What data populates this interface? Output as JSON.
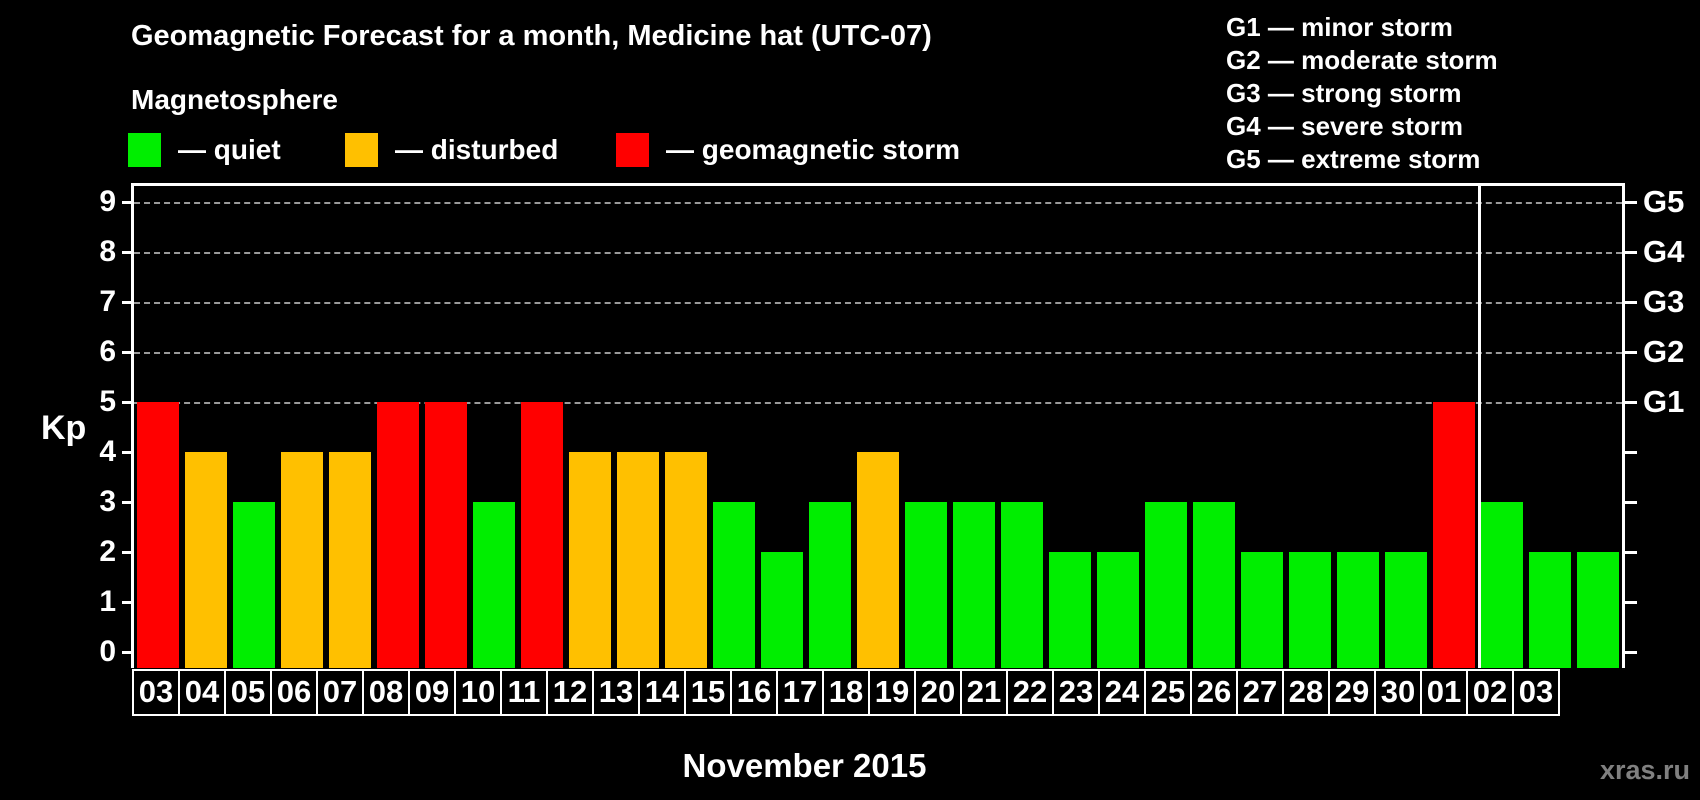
{
  "title": "Geomagnetic Forecast for a month, Medicine hat (UTC-07)",
  "subtitle": "Magnetosphere",
  "legend": {
    "items": [
      {
        "label": "— quiet",
        "status": "quiet",
        "color": "#00ee00"
      },
      {
        "label": "— disturbed",
        "status": "disturbed",
        "color": "#ffc000"
      },
      {
        "label": "— geomagnetic storm",
        "status": "storm",
        "color": "#ff0000"
      }
    ]
  },
  "storm_scale": [
    "G1 — minor storm",
    "G2 — moderate storm",
    "G3 — strong storm",
    "G4 — severe storm",
    "G5 — extreme storm"
  ],
  "axes": {
    "y_label": "Kp",
    "kp_ticks": [
      "0",
      "1",
      "2",
      "3",
      "4",
      "5",
      "6",
      "7",
      "8",
      "9"
    ],
    "g_labels": [
      {
        "kp": 5,
        "label": "G1"
      },
      {
        "kp": 6,
        "label": "G2"
      },
      {
        "kp": 7,
        "label": "G3"
      },
      {
        "kp": 8,
        "label": "G4"
      },
      {
        "kp": 9,
        "label": "G5"
      }
    ],
    "gridline_levels": [
      5,
      6,
      7,
      8,
      9
    ]
  },
  "x_axis_title": "November 2015",
  "watermark": "xras.ru",
  "chart_data": {
    "type": "bar",
    "title": "Geomagnetic Forecast for a month, Medicine hat (UTC-07)",
    "ylabel": "Kp",
    "ylim": [
      0,
      9
    ],
    "grid": "horizontal dashed lines at Kp 5-9 (G1-G5 storm levels)",
    "legend_position": "top-left and top-right",
    "categories": [
      "03",
      "04",
      "05",
      "06",
      "07",
      "08",
      "09",
      "10",
      "11",
      "12",
      "13",
      "14",
      "15",
      "16",
      "17",
      "18",
      "19",
      "20",
      "21",
      "22",
      "23",
      "24",
      "25",
      "26",
      "27",
      "28",
      "29",
      "30",
      "01",
      "02",
      "03"
    ],
    "values": [
      5,
      4,
      3,
      4,
      4,
      5,
      5,
      3,
      5,
      4,
      4,
      4,
      3,
      2,
      3,
      4,
      3,
      3,
      3,
      2,
      2,
      3,
      3,
      2,
      2,
      2,
      2,
      5,
      3,
      2,
      2
    ],
    "statuses": [
      "storm",
      "disturbed",
      "quiet",
      "disturbed",
      "disturbed",
      "storm",
      "storm",
      "quiet",
      "storm",
      "disturbed",
      "disturbed",
      "disturbed",
      "quiet",
      "quiet",
      "quiet",
      "disturbed",
      "quiet",
      "quiet",
      "quiet",
      "quiet",
      "quiet",
      "quiet",
      "quiet",
      "quiet",
      "quiet",
      "quiet",
      "quiet",
      "storm",
      "quiet",
      "quiet",
      "quiet"
    ],
    "status_colors": {
      "quiet": "#00ee00",
      "disturbed": "#ffc000",
      "storm": "#ff0000"
    },
    "month_separator_after_index": 27
  }
}
